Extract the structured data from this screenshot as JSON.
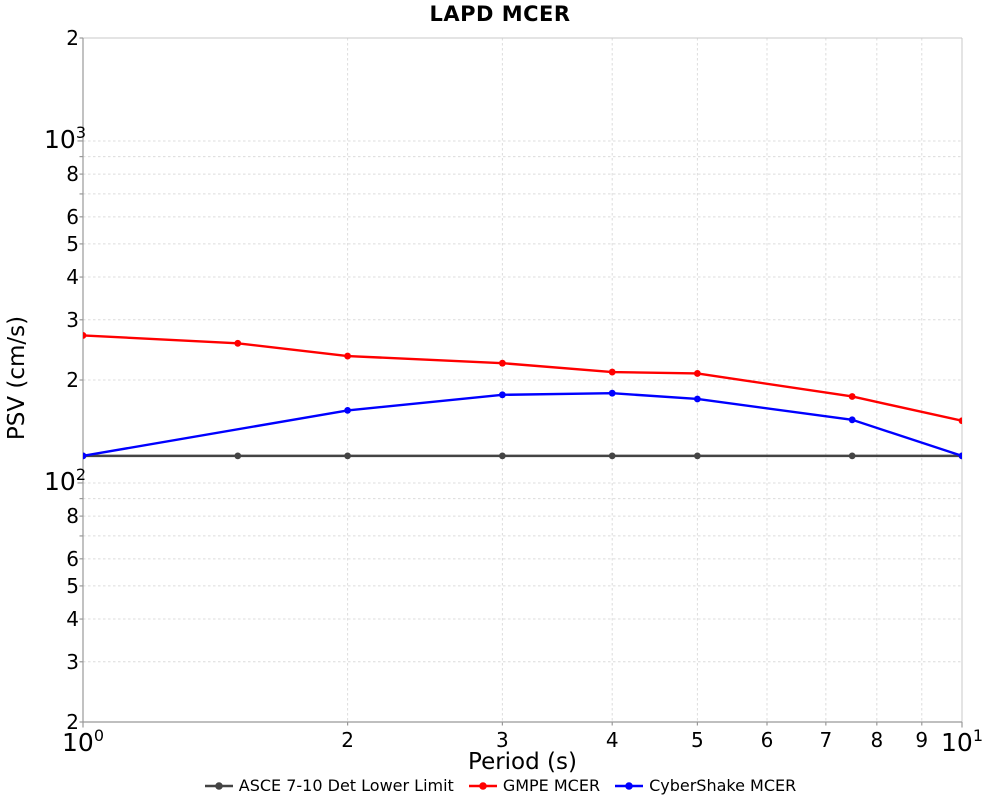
{
  "chart_data": {
    "type": "line",
    "title": "LAPD MCER",
    "xlabel": "Period (s)",
    "ylabel": "PSV (cm/s)",
    "x_scale": "log",
    "y_scale": "log",
    "xlim": [
      1,
      10
    ],
    "ylim": [
      20,
      2000
    ],
    "grid": "both axes, all log minors, light gray dashed",
    "legend_position": "bottom-center",
    "x_ticks": [
      {
        "v": 1,
        "label": "10^0",
        "major": true
      },
      {
        "v": 2,
        "label": "2"
      },
      {
        "v": 3,
        "label": "3"
      },
      {
        "v": 4,
        "label": "4"
      },
      {
        "v": 5,
        "label": "5"
      },
      {
        "v": 6,
        "label": "6"
      },
      {
        "v": 7,
        "label": "7"
      },
      {
        "v": 8,
        "label": "8"
      },
      {
        "v": 9,
        "label": "9"
      },
      {
        "v": 10,
        "label": "10^1",
        "major": true
      }
    ],
    "y_ticks": [
      {
        "v": 2000,
        "label": "2"
      },
      {
        "v": 1000,
        "label": "10^3",
        "major": true
      },
      {
        "v": 800,
        "label": "8"
      },
      {
        "v": 600,
        "label": "6"
      },
      {
        "v": 500,
        "label": "5"
      },
      {
        "v": 400,
        "label": "4"
      },
      {
        "v": 300,
        "label": "3"
      },
      {
        "v": 200,
        "label": "2"
      },
      {
        "v": 100,
        "label": "10^2",
        "major": true
      },
      {
        "v": 80,
        "label": "8"
      },
      {
        "v": 60,
        "label": "6"
      },
      {
        "v": 50,
        "label": "5"
      },
      {
        "v": 40,
        "label": "4"
      },
      {
        "v": 30,
        "label": "3"
      },
      {
        "v": 20,
        "label": "2"
      }
    ],
    "x_gridlines": [
      2,
      3,
      4,
      5,
      6,
      7,
      8,
      9
    ],
    "y_gridlines": [
      30,
      40,
      50,
      60,
      70,
      80,
      90,
      100,
      200,
      300,
      400,
      500,
      600,
      700,
      800,
      900,
      1000
    ],
    "series": [
      {
        "name": "ASCE 7-10 Det Lower Limit",
        "color": "#444444",
        "x": [
          1,
          1.5,
          2,
          3,
          4,
          5,
          7.5,
          10
        ],
        "values": [
          120,
          120,
          120,
          120,
          120,
          120,
          120,
          120
        ]
      },
      {
        "name": "GMPE MCER",
        "color": "#ff0000",
        "x": [
          1,
          1.5,
          2,
          3,
          4,
          5,
          7.5,
          10
        ],
        "values": [
          270,
          256,
          235,
          224,
          211,
          209,
          179,
          152
        ]
      },
      {
        "name": "CyberShake MCER",
        "color": "#0000ff",
        "x": [
          1,
          2,
          3,
          4,
          5,
          7.5,
          10
        ],
        "values": [
          120,
          163,
          181,
          183,
          176,
          153,
          120
        ]
      }
    ]
  }
}
